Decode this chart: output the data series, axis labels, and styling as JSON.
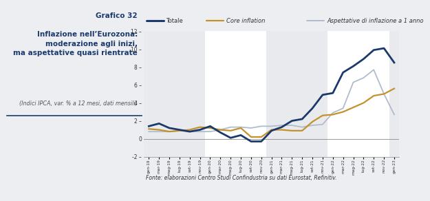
{
  "title_main": "Grafico 32",
  "title_sub": "Inflazione nell’Eurozona:\nmoderazione agli inizi,\nma aspettative quasi rientrate",
  "subtitle_italic": "(Indici IPCA, var. % a 12 mesi, dati mensili)",
  "fonte": "Fonte: elaborazioni Centro Studi Confindustria su dati Eurostat, Refinitiv.",
  "legend_labels": [
    "Totale",
    "Core inflation",
    "Aspettative di inflazione a 1 anno"
  ],
  "colors": {
    "totale": "#1B3A6B",
    "core": "#C4922A",
    "aspettative": "#B0BCCC"
  },
  "x_labels": [
    "gen-19",
    "mar-19",
    "mag-19",
    "lug-19",
    "set-19",
    "nov-19",
    "gen-20",
    "mar-20",
    "mag-20",
    "lug-20",
    "set-20",
    "nov-20",
    "gen-21",
    "mar-21",
    "mag-21",
    "lug-21",
    "set-21",
    "nov-21",
    "gen-22",
    "mar-22",
    "mag-22",
    "lug-22",
    "set-22",
    "nov-22",
    "gen-23"
  ],
  "totale": [
    1.4,
    1.7,
    1.2,
    1.0,
    0.8,
    1.0,
    1.4,
    0.7,
    0.1,
    0.4,
    -0.3,
    -0.3,
    0.9,
    1.3,
    2.0,
    2.2,
    3.4,
    4.9,
    5.1,
    7.4,
    8.1,
    8.9,
    9.9,
    10.1,
    8.5
  ],
  "core": [
    1.1,
    1.0,
    0.8,
    0.9,
    1.0,
    1.3,
    1.2,
    1.0,
    0.9,
    1.2,
    0.2,
    0.2,
    1.0,
    1.0,
    0.9,
    0.9,
    1.9,
    2.6,
    2.7,
    3.0,
    3.5,
    4.0,
    4.8,
    5.0,
    5.6
  ],
  "aspettative": [
    0.8,
    0.8,
    0.8,
    0.9,
    0.8,
    0.8,
    0.8,
    1.0,
    1.3,
    1.3,
    1.2,
    1.4,
    1.4,
    1.5,
    1.5,
    1.3,
    1.5,
    1.6,
    2.9,
    3.4,
    6.3,
    6.8,
    7.7,
    5.0,
    2.7
  ],
  "ylim": [
    -2,
    12
  ],
  "yticks": [
    -2,
    0,
    2,
    4,
    6,
    8,
    10,
    12
  ],
  "bg_color": "#EDEEF2",
  "plot_bg": "#FFFFFF",
  "stripe_color": "#D8DAE0"
}
